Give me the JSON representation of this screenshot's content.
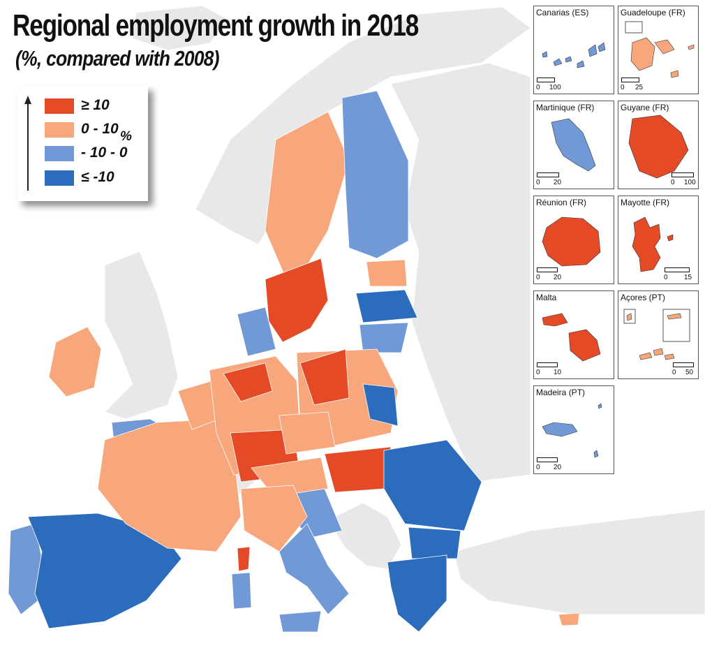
{
  "title": "Regional employment growth in 2018",
  "subtitle": "(%, compared with 2008)",
  "colors": {
    "sea": "#ffffff",
    "non_eu_land": "#e8e8e8",
    "border": "#ffffff",
    "class_high": "#e34a25",
    "class_mid_high": "#f7a77b",
    "class_mid_low": "#7099d6",
    "class_low": "#2c6cbd"
  },
  "legend": {
    "unit": "%",
    "classes": [
      {
        "label": "≥ 10",
        "color": "#e34a25"
      },
      {
        "label": "0 - 10",
        "color": "#f7a77b"
      },
      {
        "label": "- 10 - 0",
        "color": "#7099d6"
      },
      {
        "label": "≤ -10",
        "color": "#2c6cbd"
      }
    ]
  },
  "insets": [
    {
      "label": "Canarias (ES)",
      "scale": {
        "zero": "0",
        "max": "100"
      },
      "color": "#7099d6"
    },
    {
      "label": "Guadeloupe (FR)",
      "scale": {
        "zero": "0",
        "max": "25"
      },
      "color": "#f7a77b"
    },
    {
      "label": "Martinique (FR)",
      "scale": {
        "zero": "0",
        "max": "20"
      },
      "color": "#7099d6"
    },
    {
      "label": "Guyane (FR)",
      "scale": {
        "zero": "0",
        "max": "100"
      },
      "color": "#e34a25"
    },
    {
      "label": "Réunion (FR)",
      "scale": {
        "zero": "0",
        "max": "20"
      },
      "color": "#e34a25"
    },
    {
      "label": "Mayotte (FR)",
      "scale": {
        "zero": "0",
        "max": "15"
      },
      "color": "#e34a25"
    },
    {
      "label": "Malta",
      "scale": {
        "zero": "0",
        "max": "10"
      },
      "color": "#e34a25"
    },
    {
      "label": "Açores (PT)",
      "scale": {
        "zero": "0",
        "max": "50"
      },
      "color": "#f7a77b"
    },
    {
      "label": "Madeira (PT)",
      "scale": {
        "zero": "0",
        "max": "20"
      },
      "color": "#7099d6"
    }
  ],
  "regions": [
    {
      "name": "iceland",
      "class": "non_eu"
    },
    {
      "name": "norway",
      "class": "non_eu"
    },
    {
      "name": "united-kingdom",
      "class": "non_eu"
    },
    {
      "name": "russia-east",
      "class": "non_eu"
    },
    {
      "name": "turkey",
      "class": "non_eu"
    },
    {
      "name": "switzerland",
      "class": "non_eu"
    },
    {
      "name": "balkans-west",
      "class": "non_eu"
    },
    {
      "name": "ireland",
      "class": "mid_high"
    },
    {
      "name": "spain",
      "class": "low"
    },
    {
      "name": "portugal",
      "class": "mid_low"
    },
    {
      "name": "france",
      "class": "mid_high"
    },
    {
      "name": "france-west",
      "class": "mid_low"
    },
    {
      "name": "corsica",
      "class": "high"
    },
    {
      "name": "benelux",
      "class": "mid_high"
    },
    {
      "name": "germany",
      "class": "mid_high"
    },
    {
      "name": "germany-south",
      "class": "high"
    },
    {
      "name": "germany-north",
      "class": "high"
    },
    {
      "name": "denmark",
      "class": "mid_low"
    },
    {
      "name": "sweden-north",
      "class": "mid_high"
    },
    {
      "name": "sweden-south",
      "class": "high"
    },
    {
      "name": "finland",
      "class": "mid_low"
    },
    {
      "name": "estonia",
      "class": "mid_high"
    },
    {
      "name": "latvia",
      "class": "low"
    },
    {
      "name": "lithuania",
      "class": "mid_low"
    },
    {
      "name": "poland",
      "class": "mid_high"
    },
    {
      "name": "poland-west",
      "class": "high"
    },
    {
      "name": "poland-east",
      "class": "low"
    },
    {
      "name": "czechia",
      "class": "mid_high"
    },
    {
      "name": "austria",
      "class": "mid_high"
    },
    {
      "name": "hungary",
      "class": "high"
    },
    {
      "name": "slovenia-croatia",
      "class": "mid_low"
    },
    {
      "name": "italy-north",
      "class": "mid_high"
    },
    {
      "name": "italy-south",
      "class": "mid_low"
    },
    {
      "name": "sardinia",
      "class": "mid_low"
    },
    {
      "name": "sicily",
      "class": "mid_low"
    },
    {
      "name": "romania",
      "class": "low"
    },
    {
      "name": "bulgaria",
      "class": "low"
    },
    {
      "name": "greece",
      "class": "low"
    },
    {
      "name": "cyprus",
      "class": "mid_high"
    },
    {
      "name": "malta-main",
      "class": "high"
    }
  ]
}
